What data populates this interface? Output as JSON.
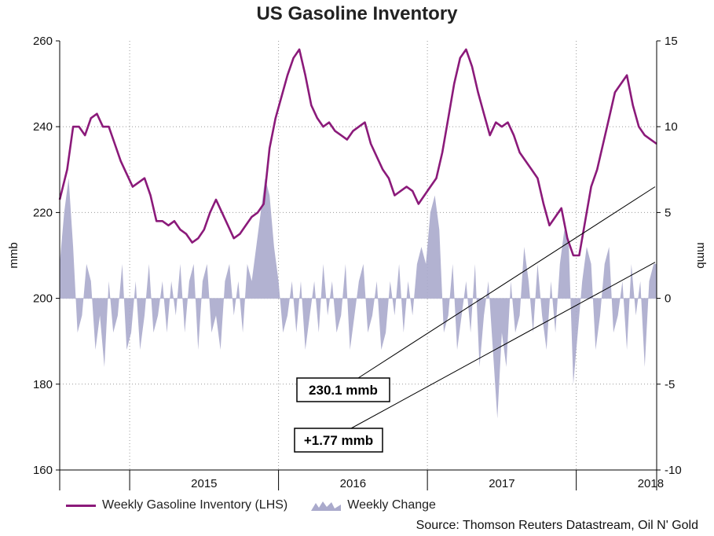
{
  "chart_data": {
    "type": "line+area",
    "title": "US Gasoline Inventory",
    "ylabel_left": "mmb",
    "ylabel_right": "mmb",
    "ylim_left": [
      160,
      260
    ],
    "yticks_left": [
      "160",
      "180",
      "200",
      "220",
      "240",
      "260"
    ],
    "ylim_right": [
      -10,
      15
    ],
    "yticks_right": [
      "-10",
      "-5",
      "0",
      "5",
      "10",
      "15"
    ],
    "xlim": [
      2014.53,
      2018.54
    ],
    "xticks": [
      {
        "label": "2015",
        "value": 2015.5
      },
      {
        "label": "2016",
        "value": 2016.5
      },
      {
        "label": "2017",
        "value": 2017.5
      },
      {
        "label": "2018",
        "value": 2018.5
      }
    ],
    "year_boundaries": [
      2015.0,
      2016.0,
      2017.0,
      2018.0
    ],
    "series": [
      {
        "name": "Weekly Gasoline Inventory (LHS)",
        "axis": "left",
        "type": "line",
        "color": "#8b1a7a",
        "points": [
          [
            2014.53,
            223
          ],
          [
            2014.58,
            230
          ],
          [
            2014.62,
            240
          ],
          [
            2014.66,
            240
          ],
          [
            2014.7,
            238
          ],
          [
            2014.74,
            242
          ],
          [
            2014.78,
            243
          ],
          [
            2014.82,
            240
          ],
          [
            2014.86,
            240
          ],
          [
            2014.9,
            236
          ],
          [
            2014.94,
            232
          ],
          [
            2014.98,
            229
          ],
          [
            2015.02,
            226
          ],
          [
            2015.06,
            227
          ],
          [
            2015.1,
            228
          ],
          [
            2015.14,
            224
          ],
          [
            2015.18,
            218
          ],
          [
            2015.22,
            218
          ],
          [
            2015.26,
            217
          ],
          [
            2015.3,
            218
          ],
          [
            2015.34,
            216
          ],
          [
            2015.38,
            215
          ],
          [
            2015.42,
            213
          ],
          [
            2015.46,
            214
          ],
          [
            2015.5,
            216
          ],
          [
            2015.54,
            220
          ],
          [
            2015.58,
            223
          ],
          [
            2015.62,
            220
          ],
          [
            2015.66,
            217
          ],
          [
            2015.7,
            214
          ],
          [
            2015.74,
            215
          ],
          [
            2015.78,
            217
          ],
          [
            2015.82,
            219
          ],
          [
            2015.86,
            220
          ],
          [
            2015.9,
            222
          ],
          [
            2015.94,
            235
          ],
          [
            2015.98,
            242
          ],
          [
            2016.02,
            247
          ],
          [
            2016.06,
            252
          ],
          [
            2016.1,
            256
          ],
          [
            2016.14,
            258
          ],
          [
            2016.18,
            252
          ],
          [
            2016.22,
            245
          ],
          [
            2016.26,
            242
          ],
          [
            2016.3,
            240
          ],
          [
            2016.34,
            241
          ],
          [
            2016.38,
            239
          ],
          [
            2016.42,
            238
          ],
          [
            2016.46,
            237
          ],
          [
            2016.5,
            239
          ],
          [
            2016.54,
            240
          ],
          [
            2016.58,
            241
          ],
          [
            2016.62,
            236
          ],
          [
            2016.66,
            233
          ],
          [
            2016.7,
            230
          ],
          [
            2016.74,
            228
          ],
          [
            2016.78,
            224
          ],
          [
            2016.82,
            225
          ],
          [
            2016.86,
            226
          ],
          [
            2016.9,
            225
          ],
          [
            2016.94,
            222
          ],
          [
            2016.98,
            224
          ],
          [
            2017.02,
            226
          ],
          [
            2017.06,
            228
          ],
          [
            2017.1,
            234
          ],
          [
            2017.14,
            242
          ],
          [
            2017.18,
            250
          ],
          [
            2017.22,
            256
          ],
          [
            2017.26,
            258
          ],
          [
            2017.3,
            254
          ],
          [
            2017.34,
            248
          ],
          [
            2017.38,
            243
          ],
          [
            2017.42,
            238
          ],
          [
            2017.46,
            241
          ],
          [
            2017.5,
            240
          ],
          [
            2017.54,
            241
          ],
          [
            2017.58,
            238
          ],
          [
            2017.62,
            234
          ],
          [
            2017.66,
            232
          ],
          [
            2017.7,
            230
          ],
          [
            2017.74,
            228
          ],
          [
            2017.78,
            222
          ],
          [
            2017.82,
            217
          ],
          [
            2017.86,
            219
          ],
          [
            2017.9,
            221
          ],
          [
            2017.94,
            214
          ],
          [
            2017.98,
            210
          ],
          [
            2018.02,
            210
          ],
          [
            2018.06,
            218
          ],
          [
            2018.1,
            226
          ],
          [
            2018.14,
            230
          ],
          [
            2018.18,
            236
          ],
          [
            2018.22,
            242
          ],
          [
            2018.26,
            248
          ],
          [
            2018.3,
            250
          ],
          [
            2018.34,
            252
          ],
          [
            2018.38,
            245
          ],
          [
            2018.42,
            240
          ],
          [
            2018.46,
            238
          ],
          [
            2018.5,
            237
          ],
          [
            2018.54,
            236
          ]
        ]
      },
      {
        "name": "Weekly Change",
        "axis": "right",
        "type": "area",
        "color": "#aaaacc",
        "points": [
          [
            2014.53,
            2
          ],
          [
            2014.56,
            5
          ],
          [
            2014.59,
            7
          ],
          [
            2014.62,
            3
          ],
          [
            2014.65,
            -2
          ],
          [
            2014.68,
            -1
          ],
          [
            2014.71,
            2
          ],
          [
            2014.74,
            1
          ],
          [
            2014.77,
            -3
          ],
          [
            2014.8,
            -1
          ],
          [
            2014.83,
            -4
          ],
          [
            2014.86,
            1
          ],
          [
            2014.89,
            -2
          ],
          [
            2014.92,
            -1
          ],
          [
            2014.95,
            2
          ],
          [
            2014.98,
            -3
          ],
          [
            2015.01,
            -2
          ],
          [
            2015.04,
            1
          ],
          [
            2015.07,
            -3
          ],
          [
            2015.1,
            -1
          ],
          [
            2015.13,
            2
          ],
          [
            2015.16,
            -2
          ],
          [
            2015.19,
            -1
          ],
          [
            2015.22,
            1
          ],
          [
            2015.25,
            -2
          ],
          [
            2015.28,
            1
          ],
          [
            2015.31,
            -1
          ],
          [
            2015.34,
            2
          ],
          [
            2015.37,
            -2
          ],
          [
            2015.4,
            1
          ],
          [
            2015.43,
            2
          ],
          [
            2015.46,
            -3
          ],
          [
            2015.49,
            1
          ],
          [
            2015.52,
            2
          ],
          [
            2015.55,
            -2
          ],
          [
            2015.58,
            -1
          ],
          [
            2015.61,
            -3
          ],
          [
            2015.64,
            1
          ],
          [
            2015.67,
            2
          ],
          [
            2015.7,
            -1
          ],
          [
            2015.73,
            1
          ],
          [
            2015.76,
            -2
          ],
          [
            2015.79,
            2
          ],
          [
            2015.82,
            1
          ],
          [
            2015.85,
            3
          ],
          [
            2015.88,
            5
          ],
          [
            2015.91,
            7
          ],
          [
            2015.94,
            6
          ],
          [
            2015.97,
            3
          ],
          [
            2016.0,
            1
          ],
          [
            2016.03,
            -2
          ],
          [
            2016.06,
            -1
          ],
          [
            2016.09,
            1
          ],
          [
            2016.12,
            -2
          ],
          [
            2016.15,
            1
          ],
          [
            2016.18,
            -3
          ],
          [
            2016.21,
            -1
          ],
          [
            2016.24,
            1
          ],
          [
            2016.27,
            -2
          ],
          [
            2016.3,
            2
          ],
          [
            2016.33,
            -1
          ],
          [
            2016.36,
            1
          ],
          [
            2016.39,
            -2
          ],
          [
            2016.42,
            -1
          ],
          [
            2016.45,
            2
          ],
          [
            2016.48,
            -3
          ],
          [
            2016.51,
            -1
          ],
          [
            2016.54,
            1
          ],
          [
            2016.57,
            2
          ],
          [
            2016.6,
            -2
          ],
          [
            2016.63,
            -1
          ],
          [
            2016.66,
            1
          ],
          [
            2016.69,
            -3
          ],
          [
            2016.72,
            -2
          ],
          [
            2016.75,
            1
          ],
          [
            2016.78,
            -1
          ],
          [
            2016.81,
            2
          ],
          [
            2016.84,
            -2
          ],
          [
            2016.87,
            1
          ],
          [
            2016.9,
            -1
          ],
          [
            2016.93,
            2
          ],
          [
            2016.96,
            3
          ],
          [
            2016.99,
            2
          ],
          [
            2017.02,
            5
          ],
          [
            2017.05,
            6
          ],
          [
            2017.08,
            4
          ],
          [
            2017.11,
            -2
          ],
          [
            2017.14,
            -1
          ],
          [
            2017.17,
            2
          ],
          [
            2017.2,
            -3
          ],
          [
            2017.23,
            -1
          ],
          [
            2017.26,
            1
          ],
          [
            2017.29,
            -2
          ],
          [
            2017.32,
            2
          ],
          [
            2017.35,
            -4
          ],
          [
            2017.38,
            -1
          ],
          [
            2017.41,
            1
          ],
          [
            2017.44,
            -3
          ],
          [
            2017.47,
            -7
          ],
          [
            2017.5,
            -2
          ],
          [
            2017.53,
            -4
          ],
          [
            2017.56,
            1
          ],
          [
            2017.59,
            -2
          ],
          [
            2017.62,
            -1
          ],
          [
            2017.65,
            3
          ],
          [
            2017.68,
            1
          ],
          [
            2017.71,
            -2
          ],
          [
            2017.74,
            2
          ],
          [
            2017.77,
            -1
          ],
          [
            2017.8,
            -3
          ],
          [
            2017.83,
            1
          ],
          [
            2017.86,
            -2
          ],
          [
            2017.89,
            2
          ],
          [
            2017.92,
            4
          ],
          [
            2017.95,
            3
          ],
          [
            2017.98,
            -5
          ],
          [
            2018.01,
            -2
          ],
          [
            2018.04,
            1
          ],
          [
            2018.07,
            3
          ],
          [
            2018.1,
            2
          ],
          [
            2018.13,
            -3
          ],
          [
            2018.16,
            -1
          ],
          [
            2018.19,
            2
          ],
          [
            2018.22,
            3
          ],
          [
            2018.25,
            -2
          ],
          [
            2018.28,
            -1
          ],
          [
            2018.31,
            1
          ],
          [
            2018.34,
            -3
          ],
          [
            2018.37,
            2
          ],
          [
            2018.4,
            -1
          ],
          [
            2018.43,
            1
          ],
          [
            2018.46,
            -4
          ],
          [
            2018.49,
            1
          ],
          [
            2018.52,
            2
          ],
          [
            2018.54,
            2
          ]
        ]
      }
    ],
    "annotations": [
      {
        "label": "230.1 mmb",
        "value_axis": "left",
        "target_value": 226
      },
      {
        "label": "+1.77 mmb",
        "value_axis": "right",
        "target_value": 2.1
      }
    ]
  },
  "legend": {
    "inventory_label": "Weekly Gasoline Inventory (LHS)",
    "change_label": "Weekly Change"
  },
  "source": "Source: Thomson Reuters Datastream, Oil N' Gold"
}
